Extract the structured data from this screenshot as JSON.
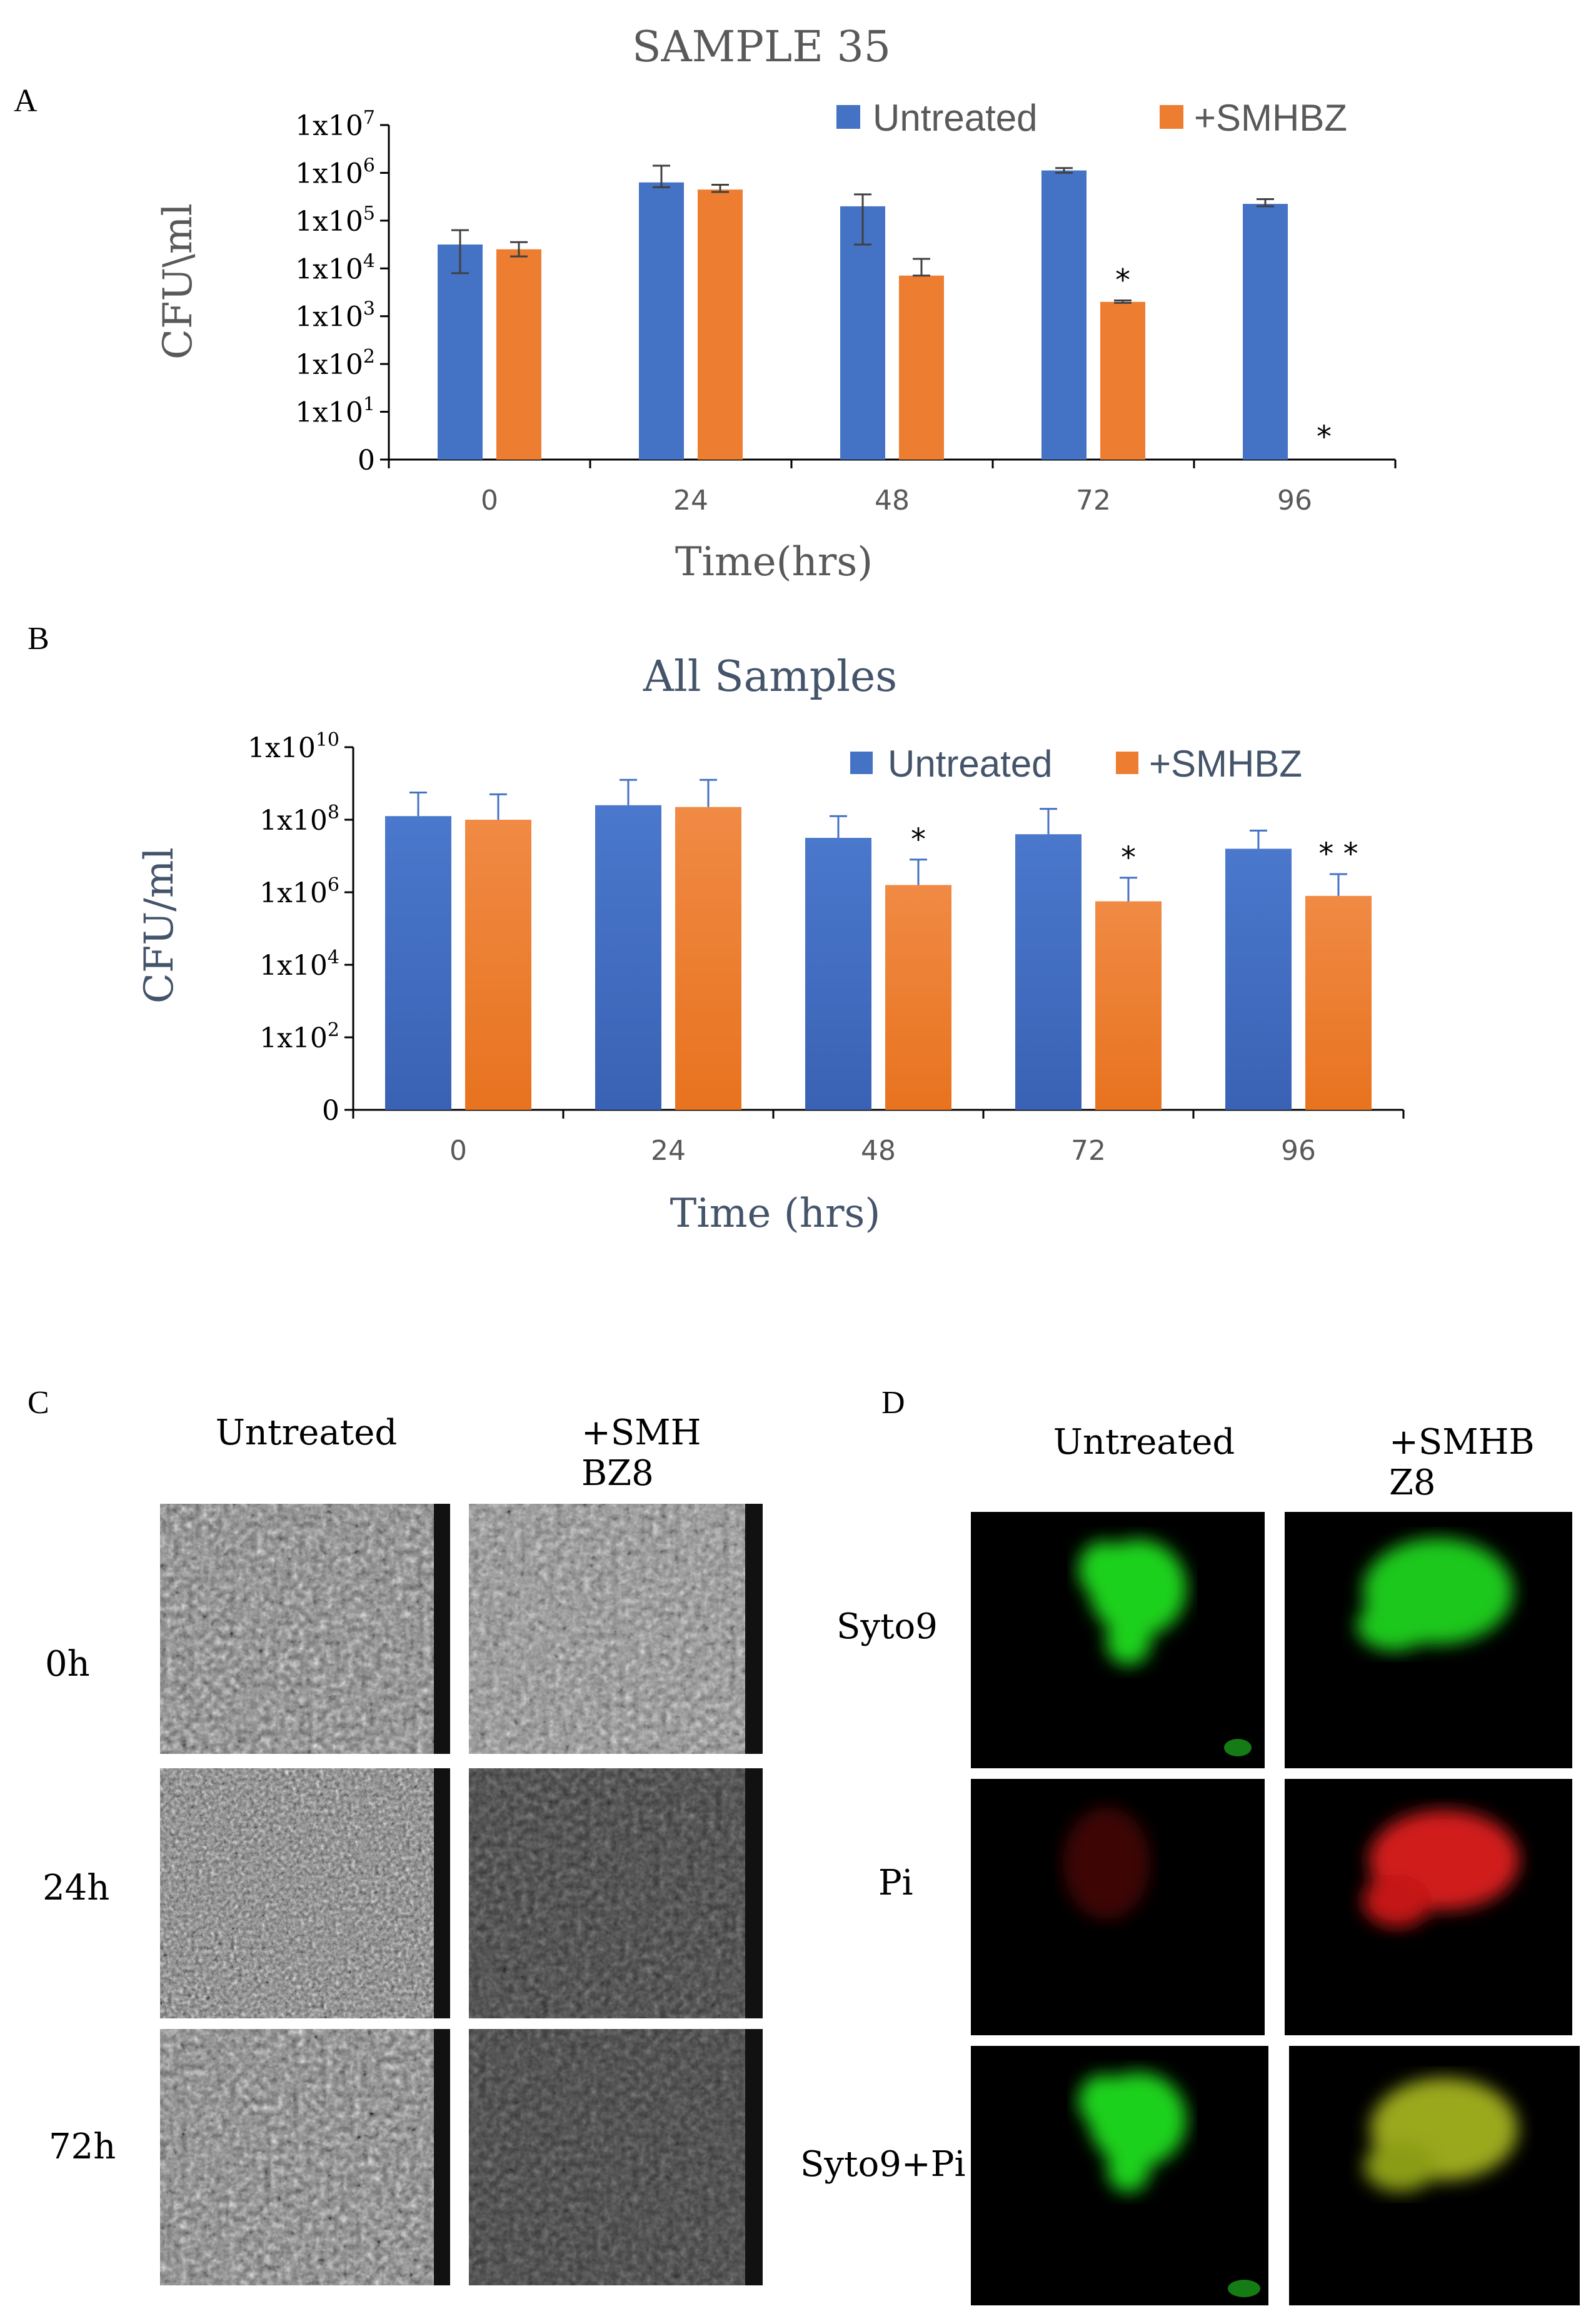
{
  "panels": {
    "A": "A",
    "B": "B",
    "C": "C",
    "D": "D"
  },
  "chart_data": [
    {
      "type": "bar",
      "title": "SAMPLE 35",
      "xlabel": "Time(hrs)",
      "ylabel": "CFU\\ml",
      "scale": "log",
      "categories": [
        "0",
        "24",
        "48",
        "72",
        "96"
      ],
      "ytick_labels": [
        "0",
        "1x10",
        "1x10",
        "1x10",
        "1x10",
        "1x10",
        "1x10",
        "1x10"
      ],
      "ytick_exponents": [
        "",
        "1",
        "2",
        "3",
        "4",
        "5",
        "6",
        "7"
      ],
      "ylim_log10": [
        0,
        7
      ],
      "legend_position": "top",
      "series": [
        {
          "name": "Untreated",
          "color": "#4472c4",
          "log10_values": [
            4.5,
            5.8,
            5.3,
            6.05,
            5.35
          ],
          "log10_err_high": [
            4.8,
            6.15,
            5.55,
            6.1,
            5.45
          ],
          "log10_err_low": [
            3.9,
            5.7,
            4.5,
            6.0,
            5.3
          ]
        },
        {
          "name": "+SMHBZ",
          "color": "#ed7d31",
          "log10_values": [
            4.4,
            5.65,
            3.85,
            3.3,
            null
          ],
          "log10_err_high": [
            4.55,
            5.75,
            4.2,
            3.33,
            null
          ],
          "log10_err_low": [
            4.25,
            5.6,
            3.85,
            3.28,
            null
          ]
        }
      ],
      "significance": [
        {
          "category": "72",
          "series": "+SMHBZ",
          "mark": "*"
        },
        {
          "category": "96",
          "series": "+SMHBZ",
          "mark": "*"
        }
      ]
    },
    {
      "type": "bar",
      "title": "All Samples",
      "xlabel": "Time (hrs)",
      "ylabel": "CFU/ml",
      "scale": "log",
      "categories": [
        "0",
        "24",
        "48",
        "72",
        "96"
      ],
      "ytick_labels": [
        "0",
        "1x10",
        "1x10",
        "1x10",
        "1x10",
        "1x10"
      ],
      "ytick_exponents": [
        "",
        "2",
        "4",
        "6",
        "8",
        "10"
      ],
      "ylim_log10": [
        0,
        10
      ],
      "legend_position": "top-right",
      "series": [
        {
          "name": "Untreated",
          "color": "#4472c4",
          "log10_values": [
            8.1,
            8.4,
            7.5,
            7.6,
            7.2
          ],
          "log10_err_high": [
            8.75,
            9.1,
            8.1,
            8.3,
            7.7
          ]
        },
        {
          "name": "+SMHBZ",
          "color": "#ed7d31",
          "log10_values": [
            8.0,
            8.35,
            6.2,
            5.75,
            5.9
          ],
          "log10_err_high": [
            8.7,
            9.1,
            6.9,
            6.4,
            6.5
          ]
        }
      ],
      "significance": [
        {
          "category": "48",
          "series": "+SMHBZ",
          "mark": "*"
        },
        {
          "category": "72",
          "series": "+SMHBZ",
          "mark": "*"
        },
        {
          "category": "96",
          "series": "+SMHBZ",
          "mark": "* *"
        }
      ]
    }
  ],
  "panel_C": {
    "col_labels": [
      "Untreated",
      "+SMH",
      "BZ8"
    ],
    "row_labels": [
      "0h",
      "24h",
      "72h"
    ]
  },
  "panel_D": {
    "col_labels": [
      "Untreated",
      "+SMHB",
      "Z8"
    ],
    "row_labels": [
      "Syto9",
      "Pi",
      "Syto9+Pi"
    ]
  }
}
